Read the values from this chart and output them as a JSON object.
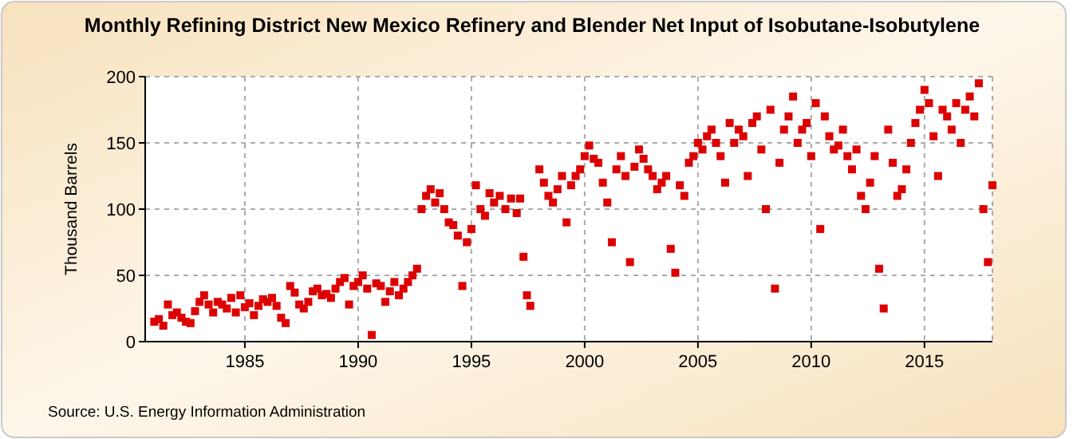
{
  "chart_data": {
    "type": "scatter",
    "title": "Monthly Refining District New Mexico Refinery and Blender Net Input of Isobutane-Isobutylene",
    "ylabel": "Thousand Barrels",
    "annotations": [
      "Source: U.S. Energy Information Administration"
    ],
    "xlim": [
      1980.6,
      2018
    ],
    "xticks": [
      1985,
      1990,
      1995,
      2000,
      2005,
      2010,
      2015
    ],
    "ylim": [
      0,
      200
    ],
    "yticks": [
      0,
      50,
      100,
      150,
      200
    ],
    "grid": true,
    "marker": "square",
    "series": [
      {
        "color": "#dd0000",
        "x": [
          1981.0,
          1981.2,
          1981.4,
          1981.6,
          1981.8,
          1982.0,
          1982.2,
          1982.4,
          1982.6,
          1982.8,
          1983.0,
          1983.2,
          1983.4,
          1983.6,
          1983.8,
          1984.0,
          1984.2,
          1984.4,
          1984.6,
          1984.8,
          1985.0,
          1985.2,
          1985.4,
          1985.6,
          1985.8,
          1986.0,
          1986.2,
          1986.4,
          1986.6,
          1986.8,
          1987.0,
          1987.2,
          1987.4,
          1987.6,
          1987.8,
          1988.0,
          1988.2,
          1988.4,
          1988.6,
          1988.8,
          1989.0,
          1989.2,
          1989.4,
          1989.6,
          1989.8,
          1990.0,
          1990.2,
          1990.4,
          1990.6,
          1990.8,
          1991.0,
          1991.2,
          1991.4,
          1991.6,
          1991.8,
          1992.0,
          1992.2,
          1992.4,
          1992.6,
          1992.8,
          1993.0,
          1993.2,
          1993.4,
          1993.6,
          1993.8,
          1994.0,
          1994.2,
          1994.4,
          1994.6,
          1994.8,
          1995.0,
          1995.2,
          1995.4,
          1995.6,
          1995.8,
          1996.0,
          1996.25,
          1996.5,
          1996.75,
          1997.0,
          1997.15,
          1997.3,
          1997.45,
          1997.6,
          1998.0,
          1998.2,
          1998.4,
          1998.6,
          1998.8,
          1999.0,
          1999.2,
          1999.4,
          1999.6,
          1999.8,
          2000.0,
          2000.2,
          2000.4,
          2000.6,
          2000.8,
          2001.0,
          2001.2,
          2001.4,
          2001.6,
          2001.8,
          2002.0,
          2002.2,
          2002.4,
          2002.6,
          2002.8,
          2003.0,
          2003.2,
          2003.4,
          2003.6,
          2003.8,
          2004.0,
          2004.2,
          2004.4,
          2004.6,
          2004.8,
          2005.0,
          2005.2,
          2005.4,
          2005.6,
          2005.8,
          2006.0,
          2006.2,
          2006.4,
          2006.6,
          2006.8,
          2007.0,
          2007.2,
          2007.4,
          2007.6,
          2007.8,
          2008.0,
          2008.2,
          2008.4,
          2008.6,
          2008.8,
          2009.0,
          2009.2,
          2009.4,
          2009.6,
          2009.8,
          2010.0,
          2010.2,
          2010.4,
          2010.6,
          2010.8,
          2011.0,
          2011.2,
          2011.4,
          2011.6,
          2011.8,
          2012.0,
          2012.2,
          2012.4,
          2012.6,
          2012.8,
          2013.0,
          2013.2,
          2013.4,
          2013.6,
          2013.8,
          2014.0,
          2014.2,
          2014.4,
          2014.6,
          2014.8,
          2015.0,
          2015.2,
          2015.4,
          2015.6,
          2015.8,
          2016.0,
          2016.2,
          2016.4,
          2016.6,
          2016.8,
          2017.0,
          2017.2,
          2017.4,
          2017.6,
          2017.8,
          2018.0
        ],
        "values": [
          15,
          17,
          12,
          28,
          20,
          22,
          18,
          15,
          14,
          23,
          30,
          35,
          28,
          22,
          30,
          28,
          25,
          33,
          22,
          35,
          26,
          29,
          20,
          27,
          32,
          30,
          33,
          27,
          18,
          14,
          42,
          37,
          28,
          25,
          30,
          38,
          40,
          35,
          36,
          33,
          40,
          45,
          48,
          28,
          42,
          45,
          50,
          40,
          5,
          44,
          42,
          30,
          38,
          45,
          35,
          40,
          45,
          50,
          55,
          100,
          110,
          115,
          105,
          112,
          100,
          90,
          88,
          80,
          42,
          75,
          85,
          118,
          100,
          95,
          112,
          105,
          110,
          100,
          108,
          97,
          108,
          64,
          35,
          27,
          130,
          120,
          110,
          105,
          115,
          125,
          90,
          118,
          125,
          130,
          140,
          148,
          138,
          135,
          120,
          105,
          75,
          130,
          140,
          125,
          60,
          132,
          145,
          138,
          130,
          125,
          115,
          120,
          125,
          70,
          52,
          118,
          110,
          135,
          140,
          150,
          145,
          155,
          160,
          150,
          140,
          120,
          165,
          150,
          160,
          155,
          125,
          165,
          170,
          145,
          100,
          175,
          40,
          135,
          160,
          170,
          185,
          150,
          160,
          165,
          140,
          180,
          85,
          170,
          155,
          145,
          148,
          160,
          140,
          130,
          145,
          110,
          100,
          120,
          140,
          55,
          25,
          160,
          135,
          110,
          115,
          130,
          150,
          165,
          175,
          190,
          180,
          155,
          125,
          175,
          170,
          160,
          180,
          150,
          175,
          185,
          170,
          195,
          100,
          60,
          118
        ]
      }
    ]
  }
}
